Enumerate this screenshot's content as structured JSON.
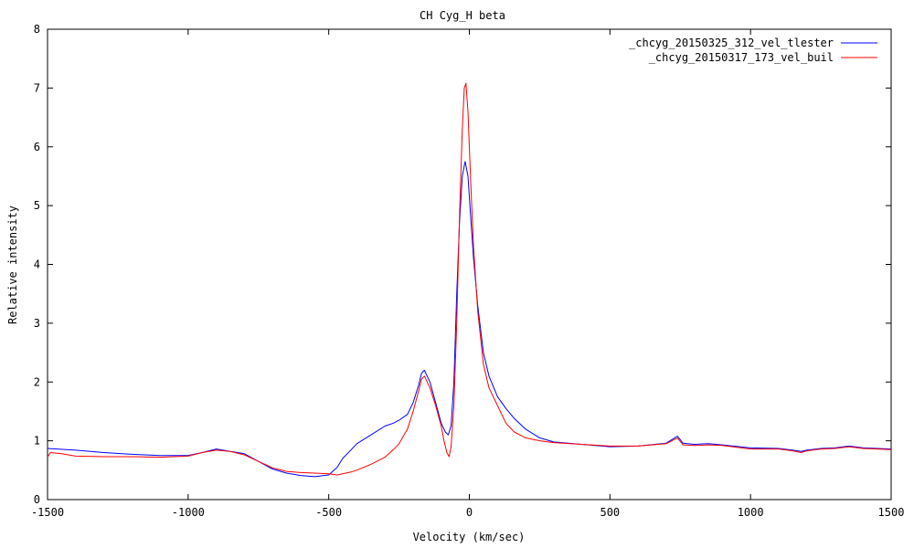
{
  "chart_data": {
    "type": "line",
    "title": "CH Cyg_H beta",
    "xlabel": "Velocity (km/sec)",
    "ylabel": "Relative intensity",
    "xlim": [
      -1500,
      1500
    ],
    "ylim": [
      0,
      8
    ],
    "x_ticks": [
      -1500,
      -1000,
      -500,
      0,
      500,
      1000,
      1500
    ],
    "x_tick_labels": [
      "-1500",
      "-1000",
      "-500",
      "0",
      "500",
      "1000",
      "1500"
    ],
    "y_ticks": [
      0,
      1,
      2,
      3,
      4,
      5,
      6,
      7,
      8
    ],
    "y_tick_labels": [
      "0",
      "1",
      "2",
      "3",
      "4",
      "5",
      "6",
      "7",
      "8"
    ],
    "grid": false,
    "legend_position": "top-right",
    "series": [
      {
        "name": "_chcyg_20150325_312_vel_tlester",
        "color": "#0000ff",
        "x": [
          -1500,
          -1400,
          -1300,
          -1200,
          -1100,
          -1000,
          -950,
          -900,
          -850,
          -800,
          -750,
          -700,
          -650,
          -600,
          -550,
          -500,
          -470,
          -450,
          -420,
          -400,
          -350,
          -300,
          -270,
          -250,
          -220,
          -200,
          -180,
          -170,
          -160,
          -140,
          -120,
          -100,
          -85,
          -75,
          -65,
          -55,
          -45,
          -35,
          -25,
          -15,
          -5,
          5,
          15,
          30,
          50,
          70,
          100,
          130,
          160,
          200,
          250,
          300,
          400,
          500,
          600,
          700,
          740,
          760,
          800,
          850,
          900,
          1000,
          1100,
          1150,
          1180,
          1200,
          1250,
          1300,
          1350,
          1400,
          1450,
          1500
        ],
        "y": [
          0.87,
          0.84,
          0.8,
          0.77,
          0.75,
          0.75,
          0.8,
          0.86,
          0.82,
          0.78,
          0.65,
          0.52,
          0.45,
          0.41,
          0.39,
          0.42,
          0.55,
          0.7,
          0.85,
          0.95,
          1.1,
          1.25,
          1.3,
          1.35,
          1.45,
          1.65,
          1.95,
          2.15,
          2.2,
          2.0,
          1.65,
          1.3,
          1.15,
          1.1,
          1.25,
          2.0,
          3.5,
          4.7,
          5.5,
          5.75,
          5.5,
          4.8,
          4.1,
          3.3,
          2.5,
          2.1,
          1.75,
          1.55,
          1.38,
          1.2,
          1.05,
          0.98,
          0.94,
          0.9,
          0.91,
          0.96,
          1.08,
          0.96,
          0.94,
          0.95,
          0.93,
          0.88,
          0.87,
          0.84,
          0.82,
          0.84,
          0.87,
          0.88,
          0.91,
          0.88,
          0.87,
          0.86
        ]
      },
      {
        "name": "_chcyg_20150317_173_vel_buil",
        "color": "#ff0000",
        "x": [
          -1500,
          -1490,
          -1450,
          -1400,
          -1300,
          -1200,
          -1100,
          -1000,
          -950,
          -900,
          -850,
          -800,
          -750,
          -700,
          -650,
          -600,
          -550,
          -500,
          -470,
          -450,
          -420,
          -400,
          -350,
          -300,
          -270,
          -250,
          -220,
          -200,
          -180,
          -170,
          -160,
          -140,
          -120,
          -100,
          -90,
          -80,
          -72,
          -65,
          -55,
          -45,
          -35,
          -25,
          -18,
          -12,
          -5,
          5,
          15,
          30,
          50,
          70,
          100,
          130,
          160,
          200,
          250,
          300,
          400,
          500,
          600,
          700,
          740,
          760,
          800,
          850,
          900,
          1000,
          1100,
          1150,
          1180,
          1200,
          1250,
          1300,
          1350,
          1400,
          1450,
          1500
        ],
        "y": [
          0.72,
          0.8,
          0.78,
          0.74,
          0.73,
          0.73,
          0.72,
          0.74,
          0.8,
          0.84,
          0.82,
          0.76,
          0.65,
          0.54,
          0.48,
          0.46,
          0.45,
          0.44,
          0.42,
          0.44,
          0.47,
          0.5,
          0.6,
          0.72,
          0.85,
          0.95,
          1.2,
          1.5,
          1.85,
          2.05,
          2.1,
          1.9,
          1.6,
          1.25,
          1.0,
          0.8,
          0.73,
          0.9,
          1.6,
          3.0,
          4.8,
          6.3,
          7.0,
          7.08,
          6.6,
          5.4,
          4.3,
          3.2,
          2.3,
          1.9,
          1.6,
          1.3,
          1.15,
          1.05,
          1.0,
          0.97,
          0.94,
          0.91,
          0.91,
          0.95,
          1.05,
          0.93,
          0.92,
          0.93,
          0.92,
          0.86,
          0.86,
          0.83,
          0.8,
          0.83,
          0.86,
          0.87,
          0.9,
          0.87,
          0.86,
          0.85
        ]
      }
    ]
  }
}
